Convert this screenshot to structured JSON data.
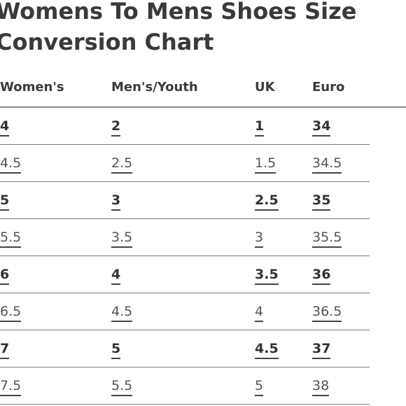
{
  "title_line1": "Womens To Mens Shoes Size",
  "title_line2": "Conversion Chart",
  "headers": [
    "Women's",
    "Men's/Youth",
    "UK",
    "Euro"
  ],
  "rows": [
    {
      "bold": true,
      "cells": [
        "4",
        "2",
        "1",
        "34"
      ]
    },
    {
      "bold": false,
      "cells": [
        "4.5",
        "2.5",
        "1.5",
        "34.5"
      ]
    },
    {
      "bold": true,
      "cells": [
        "5",
        "3",
        "2.5",
        "35"
      ]
    },
    {
      "bold": false,
      "cells": [
        "5.5",
        "3.5",
        "3",
        "35.5"
      ]
    },
    {
      "bold": true,
      "cells": [
        "6",
        "4",
        "3.5",
        "36"
      ]
    },
    {
      "bold": false,
      "cells": [
        "6.5",
        "4.5",
        "4",
        "36.5"
      ]
    },
    {
      "bold": true,
      "cells": [
        "7",
        "5",
        "4.5",
        "37"
      ]
    },
    {
      "bold": false,
      "cells": [
        "7.5",
        "5.5",
        "5",
        "38"
      ]
    }
  ]
}
